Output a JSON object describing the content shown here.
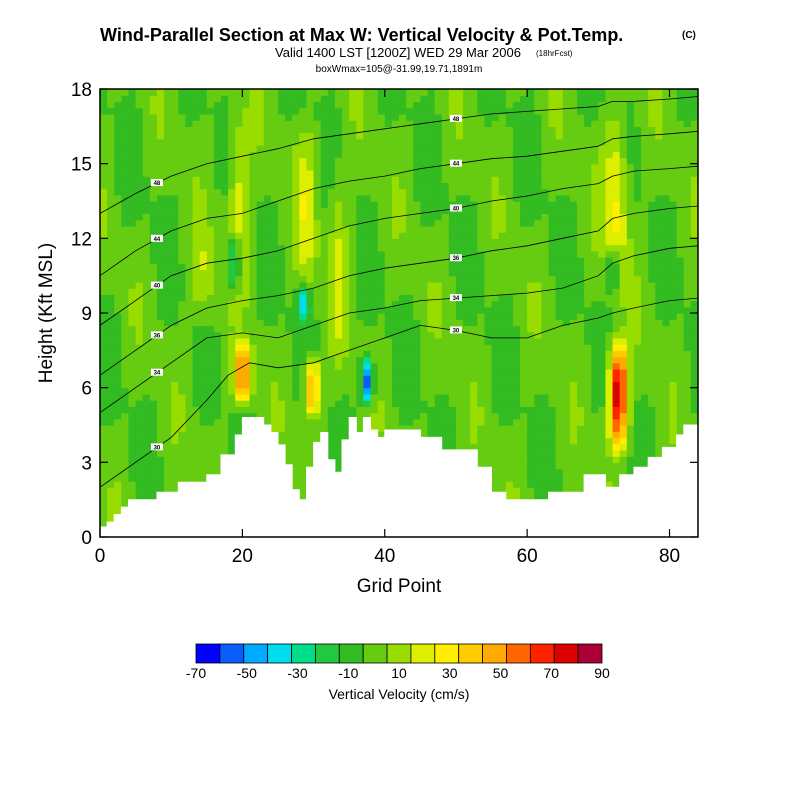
{
  "chart_data": {
    "type": "heatmap",
    "title": "Wind-Parallel Section at Max W: Vertical Velocity & Pot.Temp.",
    "title_mark": "(C)",
    "subtitle": "Valid 1400 LST [1200Z] WED 29 Mar 2006",
    "forecast_note": "(18hrFcst)",
    "subtitle2": "boxWmax=105@-31.99,19.71,1891m",
    "xlabel": "Grid Point",
    "ylabel": "Height (Kft MSL)",
    "xlim": [
      0,
      84
    ],
    "ylim": [
      0,
      18
    ],
    "xticks": [
      0,
      20,
      40,
      60,
      80
    ],
    "yticks": [
      0,
      3,
      6,
      9,
      12,
      15,
      18
    ],
    "colorbar": {
      "label": "Vertical Velocity (cm/s)",
      "ticks": [
        -70,
        -50,
        -30,
        -10,
        10,
        30,
        50,
        70,
        90
      ],
      "levels": [
        -70,
        -60,
        -50,
        -40,
        -30,
        -20,
        -10,
        0,
        10,
        20,
        30,
        40,
        50,
        60,
        70,
        80,
        90
      ],
      "colors": [
        "#0000ff",
        "#0a5cff",
        "#00aaff",
        "#00ddee",
        "#00dd88",
        "#22c840",
        "#33bb22",
        "#66cc11",
        "#99dd00",
        "#ddee00",
        "#ffee00",
        "#ffcc00",
        "#ffaa00",
        "#ff6600",
        "#ff2200",
        "#dd0000",
        "#aa0033"
      ]
    },
    "terrain": [
      [
        0,
        0.4
      ],
      [
        1,
        0.4
      ],
      [
        1,
        0.6
      ],
      [
        2,
        0.6
      ],
      [
        2,
        0.9
      ],
      [
        3,
        0.9
      ],
      [
        3,
        1.2
      ],
      [
        4,
        1.2
      ],
      [
        4,
        1.5
      ],
      [
        8,
        1.5
      ],
      [
        8,
        1.8
      ],
      [
        11,
        1.8
      ],
      [
        11,
        2.2
      ],
      [
        15,
        2.2
      ],
      [
        15,
        2.5
      ],
      [
        17,
        2.5
      ],
      [
        17,
        3.3
      ],
      [
        19,
        3.3
      ],
      [
        19,
        4.1
      ],
      [
        20,
        4.1
      ],
      [
        20,
        4.8
      ],
      [
        23,
        4.8
      ],
      [
        23,
        4.5
      ],
      [
        24,
        4.5
      ],
      [
        24,
        4.2
      ],
      [
        25,
        4.2
      ],
      [
        25,
        3.7
      ],
      [
        26,
        3.7
      ],
      [
        26,
        2.9
      ],
      [
        27,
        2.9
      ],
      [
        27,
        1.9
      ],
      [
        28,
        1.9
      ],
      [
        28,
        1.5
      ],
      [
        29,
        1.5
      ],
      [
        29,
        2.8
      ],
      [
        30,
        2.8
      ],
      [
        30,
        3.8
      ],
      [
        31,
        3.8
      ],
      [
        31,
        4.2
      ],
      [
        32,
        4.2
      ],
      [
        32,
        3.1
      ],
      [
        33,
        3.1
      ],
      [
        33,
        2.6
      ],
      [
        34,
        2.6
      ],
      [
        34,
        3.9
      ],
      [
        35,
        3.9
      ],
      [
        35,
        4.8
      ],
      [
        36,
        4.8
      ],
      [
        36,
        4.2
      ],
      [
        37,
        4.2
      ],
      [
        37,
        4.8
      ],
      [
        38,
        4.8
      ],
      [
        38,
        4.3
      ],
      [
        39,
        4.3
      ],
      [
        39,
        4.0
      ],
      [
        40,
        4.0
      ],
      [
        40,
        4.3
      ],
      [
        45,
        4.3
      ],
      [
        45,
        4.0
      ],
      [
        48,
        4.0
      ],
      [
        48,
        3.5
      ],
      [
        53,
        3.5
      ],
      [
        53,
        2.8
      ],
      [
        55,
        2.8
      ],
      [
        55,
        1.8
      ],
      [
        57,
        1.8
      ],
      [
        57,
        1.5
      ],
      [
        63,
        1.5
      ],
      [
        63,
        1.8
      ],
      [
        68,
        1.8
      ],
      [
        68,
        2.5
      ],
      [
        71,
        2.5
      ],
      [
        71,
        2.0
      ],
      [
        73,
        2.0
      ],
      [
        73,
        2.5
      ],
      [
        75,
        2.5
      ],
      [
        75,
        2.8
      ],
      [
        77,
        2.8
      ],
      [
        77,
        3.2
      ],
      [
        79,
        3.2
      ],
      [
        79,
        3.6
      ],
      [
        81,
        3.6
      ],
      [
        81,
        4.1
      ],
      [
        82,
        4.1
      ],
      [
        82,
        4.5
      ],
      [
        84,
        4.5
      ]
    ],
    "updrafts": [
      {
        "x": 20.0,
        "w": 1.2,
        "y0": 5.0,
        "y1": 8.2,
        "peak": 65
      },
      {
        "x": 29.8,
        "w": 1.1,
        "y0": 4.5,
        "y1": 7.5,
        "peak": 60
      },
      {
        "x": 72.8,
        "w": 1.3,
        "y0": 3.0,
        "y1": 8.5,
        "peak": 90
      },
      {
        "x": 19.5,
        "w": 1.5,
        "y0": 9.0,
        "y1": 18.0,
        "peak": 25
      },
      {
        "x": 29.0,
        "w": 1.5,
        "y0": 9.0,
        "y1": 17.5,
        "peak": 22
      },
      {
        "x": 33.5,
        "w": 1.3,
        "y0": 6.0,
        "y1": 16.0,
        "peak": 18
      },
      {
        "x": 72.5,
        "w": 1.8,
        "y0": 9.0,
        "y1": 18.0,
        "peak": 30
      },
      {
        "x": 14.5,
        "w": 2.0,
        "y0": 8.0,
        "y1": 13.0,
        "peak": 15
      }
    ],
    "downdrafts": [
      {
        "x": 18.8,
        "w": 1.0,
        "y0": 9.5,
        "y1": 12.5,
        "peak": -40
      },
      {
        "x": 28.5,
        "w": 0.9,
        "y0": 8.5,
        "y1": 10.5,
        "peak": -35
      },
      {
        "x": 37.5,
        "w": 0.8,
        "y0": 5.0,
        "y1": 7.5,
        "peak": -60
      },
      {
        "x": 72.0,
        "w": 1.0,
        "y0": 9.5,
        "y1": 12.0,
        "peak": -30
      }
    ],
    "isentropes": [
      {
        "label": "30",
        "points": [
          [
            0,
            2.0
          ],
          [
            5,
            3.0
          ],
          [
            10,
            4.0
          ],
          [
            15,
            5.5
          ],
          [
            18,
            6.5
          ],
          [
            21,
            7.0
          ],
          [
            25,
            6.8
          ],
          [
            30,
            7.0
          ],
          [
            35,
            7.5
          ],
          [
            40,
            8.0
          ],
          [
            45,
            8.5
          ],
          [
            50,
            8.3
          ],
          [
            55,
            8.0
          ],
          [
            60,
            8.0
          ],
          [
            65,
            8.5
          ],
          [
            70,
            8.8
          ],
          [
            72,
            9.0
          ],
          [
            75,
            9.2
          ],
          [
            80,
            9.5
          ],
          [
            84,
            9.6
          ]
        ]
      },
      {
        "label": "34",
        "points": [
          [
            0,
            5.0
          ],
          [
            5,
            6.0
          ],
          [
            10,
            7.0
          ],
          [
            15,
            8.0
          ],
          [
            20,
            8.2
          ],
          [
            25,
            8.0
          ],
          [
            30,
            8.5
          ],
          [
            35,
            9.0
          ],
          [
            40,
            9.2
          ],
          [
            45,
            9.5
          ],
          [
            50,
            9.6
          ],
          [
            55,
            9.7
          ],
          [
            60,
            9.8
          ],
          [
            65,
            10.0
          ],
          [
            70,
            10.5
          ],
          [
            72,
            11.0
          ],
          [
            75,
            11.3
          ],
          [
            80,
            11.6
          ],
          [
            84,
            11.7
          ]
        ]
      },
      {
        "label": "36",
        "points": [
          [
            0,
            6.5
          ],
          [
            5,
            7.5
          ],
          [
            10,
            8.5
          ],
          [
            15,
            9.2
          ],
          [
            20,
            9.5
          ],
          [
            25,
            9.7
          ],
          [
            30,
            10.0
          ],
          [
            35,
            10.5
          ],
          [
            40,
            10.8
          ],
          [
            45,
            11.0
          ],
          [
            50,
            11.2
          ],
          [
            55,
            11.5
          ],
          [
            60,
            11.7
          ],
          [
            65,
            12.0
          ],
          [
            70,
            12.3
          ],
          [
            72,
            12.8
          ],
          [
            75,
            13.0
          ],
          [
            80,
            13.2
          ],
          [
            84,
            13.3
          ]
        ]
      },
      {
        "label": "40",
        "points": [
          [
            0,
            8.5
          ],
          [
            5,
            9.5
          ],
          [
            10,
            10.5
          ],
          [
            15,
            11.0
          ],
          [
            20,
            11.2
          ],
          [
            25,
            11.5
          ],
          [
            30,
            12.0
          ],
          [
            35,
            12.5
          ],
          [
            40,
            12.8
          ],
          [
            45,
            13.0
          ],
          [
            50,
            13.2
          ],
          [
            55,
            13.5
          ],
          [
            60,
            13.7
          ],
          [
            65,
            14.0
          ],
          [
            70,
            14.2
          ],
          [
            72,
            14.5
          ],
          [
            75,
            14.7
          ],
          [
            80,
            14.8
          ],
          [
            84,
            14.9
          ]
        ]
      },
      {
        "label": "44",
        "points": [
          [
            0,
            10.5
          ],
          [
            5,
            11.5
          ],
          [
            10,
            12.3
          ],
          [
            15,
            12.8
          ],
          [
            20,
            13.0
          ],
          [
            25,
            13.5
          ],
          [
            30,
            14.0
          ],
          [
            35,
            14.3
          ],
          [
            40,
            14.5
          ],
          [
            45,
            14.8
          ],
          [
            50,
            15.0
          ],
          [
            55,
            15.2
          ],
          [
            60,
            15.3
          ],
          [
            65,
            15.5
          ],
          [
            70,
            15.7
          ],
          [
            72,
            16.0
          ],
          [
            75,
            16.1
          ],
          [
            80,
            16.2
          ],
          [
            84,
            16.3
          ]
        ]
      },
      {
        "label": "48",
        "points": [
          [
            0,
            13.0
          ],
          [
            5,
            13.8
          ],
          [
            10,
            14.5
          ],
          [
            15,
            15.0
          ],
          [
            20,
            15.3
          ],
          [
            25,
            15.6
          ],
          [
            30,
            16.0
          ],
          [
            35,
            16.2
          ],
          [
            40,
            16.4
          ],
          [
            45,
            16.6
          ],
          [
            50,
            16.8
          ],
          [
            55,
            17.0
          ],
          [
            60,
            17.1
          ],
          [
            65,
            17.2
          ],
          [
            70,
            17.3
          ],
          [
            72,
            17.5
          ],
          [
            75,
            17.5
          ],
          [
            80,
            17.6
          ],
          [
            84,
            17.7
          ]
        ]
      }
    ]
  }
}
